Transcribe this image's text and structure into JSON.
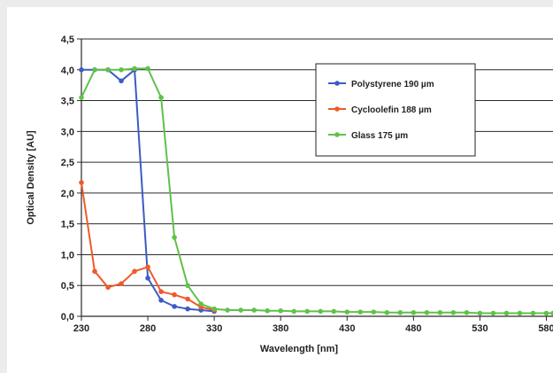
{
  "chart_data": {
    "type": "line",
    "title": "",
    "xlabel": "Wavelength [nm]",
    "ylabel": "Optical Density [AU]",
    "xlim": [
      230,
      585
    ],
    "ylim": [
      0,
      4.5
    ],
    "grid": true,
    "legend_position": "top-right",
    "x_ticks": [
      "230",
      "280",
      "330",
      "380",
      "430",
      "480",
      "530",
      "580"
    ],
    "x_tick_values": [
      230,
      280,
      330,
      380,
      430,
      480,
      530,
      580
    ],
    "y_ticks": [
      "0,0",
      "0,5",
      "1,0",
      "1,5",
      "2,0",
      "2,5",
      "3,0",
      "3,5",
      "4,0",
      "4,5"
    ],
    "y_tick_values": [
      0,
      0.5,
      1,
      1.5,
      2,
      2.5,
      3,
      3.5,
      4,
      4.5
    ],
    "series": [
      {
        "name": "Polystyrene 190 µm",
        "color": "#3b5cc4",
        "x": [
          230,
          240,
          250,
          260,
          270,
          280,
          290,
          300,
          310,
          320,
          330
        ],
        "y": [
          4.0,
          4.0,
          4.0,
          3.82,
          4.0,
          0.62,
          0.26,
          0.16,
          0.12,
          0.1,
          0.08
        ]
      },
      {
        "name": "Cycloolefin 188 µm",
        "color": "#ef5a2a",
        "x": [
          230,
          240,
          250,
          260,
          270,
          280,
          290,
          300,
          310,
          320,
          330
        ],
        "y": [
          2.17,
          0.73,
          0.47,
          0.53,
          0.73,
          0.8,
          0.4,
          0.35,
          0.28,
          0.15,
          0.1
        ]
      },
      {
        "name": "Glass 175 µm",
        "color": "#5fc24a",
        "x": [
          230,
          240,
          250,
          260,
          270,
          280,
          290,
          300,
          310,
          320,
          330,
          340,
          350,
          360,
          370,
          380,
          390,
          400,
          410,
          420,
          430,
          440,
          450,
          460,
          470,
          480,
          490,
          500,
          510,
          520,
          530,
          540,
          550,
          560,
          570,
          580,
          585
        ],
        "y": [
          3.55,
          4.0,
          4.0,
          4.0,
          4.02,
          4.02,
          3.55,
          1.28,
          0.5,
          0.2,
          0.12,
          0.1,
          0.1,
          0.1,
          0.09,
          0.09,
          0.08,
          0.08,
          0.08,
          0.08,
          0.07,
          0.07,
          0.07,
          0.06,
          0.06,
          0.06,
          0.06,
          0.06,
          0.06,
          0.06,
          0.05,
          0.05,
          0.05,
          0.05,
          0.05,
          0.05,
          0.05
        ]
      }
    ]
  }
}
